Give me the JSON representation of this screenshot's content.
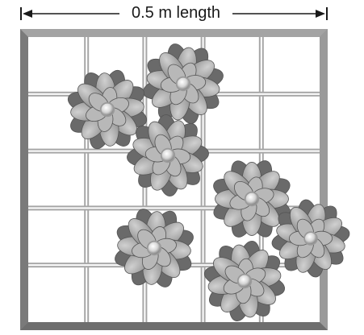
{
  "dimension": {
    "label": "0.5 m length"
  },
  "quadrat": {
    "rows": 5,
    "cols": 5,
    "flower_count": 7
  },
  "colors": {
    "frame": "#8c8c8c",
    "grid": "#a6a6a6",
    "petal_light": "#b8b8b8",
    "petal_mid": "#8f8f8f",
    "petal_dark": "#6a6a6a",
    "center": "#e6e6e6",
    "line": "#1a1a1a"
  },
  "icons": {
    "dimension_arrows": "double-headed-arrow",
    "flower": "flower-icon"
  }
}
